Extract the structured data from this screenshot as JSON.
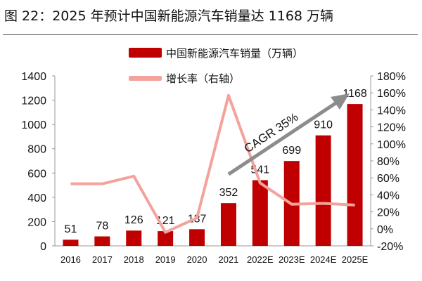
{
  "title": "图 22：2025 年预计中国新能源汽车销量达 1168 万辆",
  "chart_data": {
    "type": "bar+line",
    "categories": [
      "2016",
      "2017",
      "2018",
      "2019",
      "2020",
      "2021",
      "2022E",
      "2023E",
      "2024E",
      "2025E"
    ],
    "series": [
      {
        "name": "中国新能源汽车销量（万辆）",
        "type": "bar",
        "axis": "left",
        "color": "#C00000",
        "values": [
          51,
          78,
          126,
          121,
          137,
          352,
          541,
          699,
          910,
          1168
        ]
      },
      {
        "name": "增长率（右轴）",
        "type": "line",
        "axis": "right",
        "color": "#F4A29C",
        "values": [
          53,
          53,
          62,
          -4,
          13,
          157,
          54,
          29,
          30,
          28
        ]
      }
    ],
    "left_axis": {
      "ylim": [
        0,
        1400
      ],
      "ticks": [
        "0",
        "200",
        "400",
        "600",
        "800",
        "1000",
        "1200",
        "1400"
      ]
    },
    "right_axis": {
      "ylim": [
        -20,
        180
      ],
      "ticks": [
        "-20%",
        "0%",
        "20%",
        "40%",
        "60%",
        "80%",
        "100%",
        "120%",
        "140%",
        "160%",
        "180%"
      ]
    },
    "annotation": "CAGR 35%",
    "annotation_color": "#8C8C8C",
    "legend": "top-center",
    "grid": false
  }
}
